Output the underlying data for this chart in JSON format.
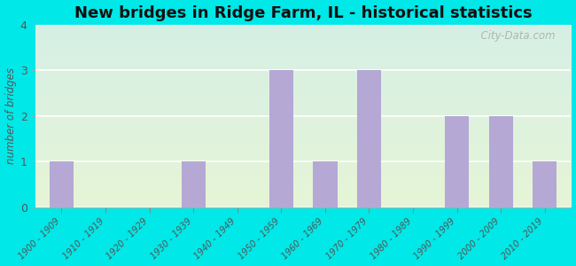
{
  "title": "New bridges in Ridge Farm, IL - historical statistics",
  "categories": [
    "1900 - 1909",
    "1910 - 1919",
    "1920 - 1929",
    "1930 - 1939",
    "1940 - 1949",
    "1950 - 1959",
    "1960 - 1969",
    "1970 - 1979",
    "1980 - 1989",
    "1990 - 1999",
    "2000 - 2009",
    "2010 - 2019"
  ],
  "values": [
    1,
    0,
    0,
    1,
    0,
    3,
    1,
    3,
    0,
    2,
    2,
    1
  ],
  "bar_color": "#b5a8d5",
  "ylabel": "number of bridges",
  "ylim": [
    0,
    4
  ],
  "yticks": [
    0,
    1,
    2,
    3,
    4
  ],
  "bg_outer": "#00e8e8",
  "bg_plot_topleft": "#d6efe8",
  "bg_plot_topright": "#cce8e0",
  "bg_plot_bottom": "#e8f2e0",
  "title_fontsize": 13,
  "tick_label_color": "#555555",
  "grid_color": "#cccccc",
  "watermark": "  City-Data.com"
}
